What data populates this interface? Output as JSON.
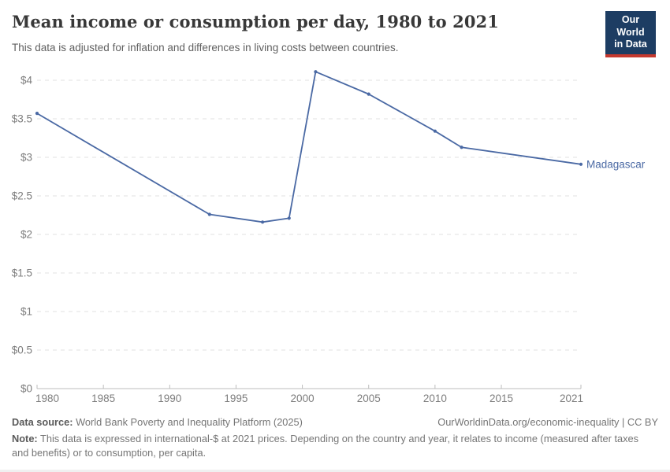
{
  "header": {
    "title": "Mean income or consumption per day, 1980 to 2021",
    "subtitle": "This data is adjusted for inflation and differences in living costs between countries.",
    "logo": {
      "line1": "Our World",
      "line2": "in Data",
      "bg_color": "#1d3d63",
      "bar_color": "#c5392f"
    }
  },
  "chart_data": {
    "type": "line",
    "title": "Mean income or consumption per day, 1980 to 2021",
    "xlabel": "",
    "ylabel": "",
    "xlim": [
      1980,
      2021
    ],
    "ylim": [
      0,
      4
    ],
    "grid": "horizontal-dashed",
    "legend_position": "end-of-line",
    "x_ticks": [
      1980,
      1985,
      1990,
      1995,
      2000,
      2005,
      2010,
      2015,
      2021
    ],
    "y_ticks": [
      0,
      0.5,
      1,
      1.5,
      2,
      2.5,
      3,
      3.5,
      4
    ],
    "y_tick_labels": [
      "$0",
      "$0.5",
      "$1",
      "$1.5",
      "$2",
      "$2.5",
      "$3",
      "$3.5",
      "$4"
    ],
    "series": [
      {
        "name": "Madagascar",
        "color": "#4a69a4",
        "x": [
          1980,
          1993,
          1997,
          1999,
          2001,
          2005,
          2010,
          2012,
          2021
        ],
        "values": [
          3.57,
          2.26,
          2.16,
          2.21,
          4.11,
          3.82,
          3.34,
          3.13,
          2.91
        ]
      }
    ],
    "grid_color": "#e2e2e2",
    "axis_color": "#bdbdbd"
  },
  "footer": {
    "datasource_label": "Data source:",
    "datasource_text": " World Bank Poverty and Inequality Platform (2025)",
    "link": "OurWorldinData.org/economic-inequality | CC BY",
    "note_label": "Note:",
    "note_text": " This data is expressed in international-$ at 2021 prices. Depending on the country and year, it relates to income (measured after taxes and benefits) or to consumption, per capita."
  }
}
